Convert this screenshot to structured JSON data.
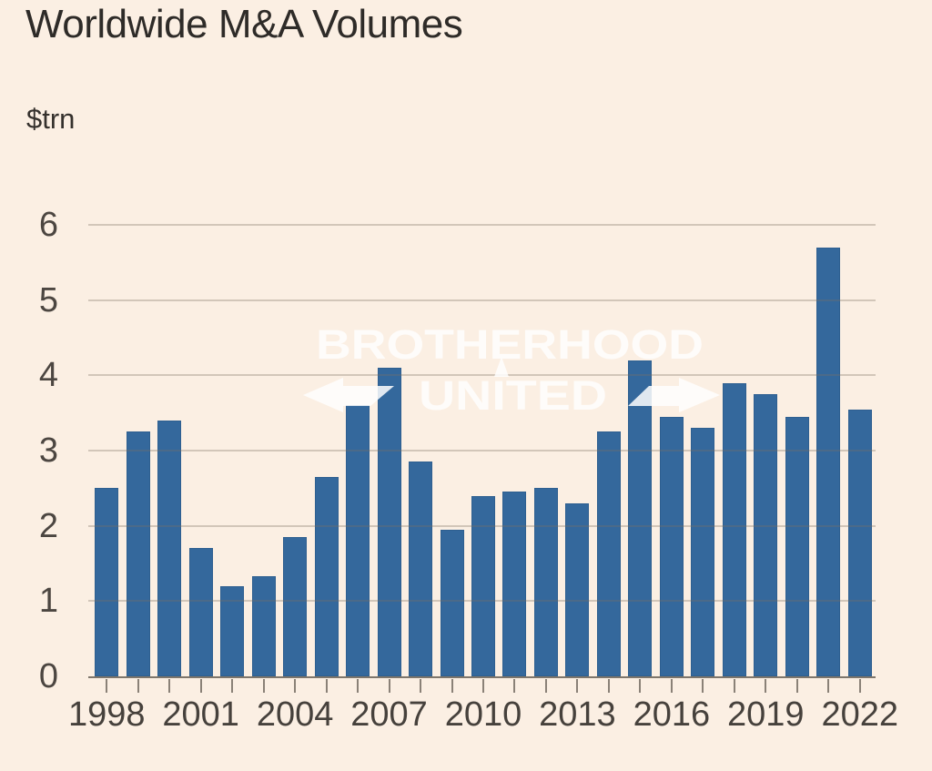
{
  "page": {
    "title": "Worldwide M&A Volumes",
    "unit_label": "$trn"
  },
  "watermark": {
    "line1": "BROTHERHOOD",
    "line2": "UNITED",
    "color": "#FFFFFF",
    "arrows": [
      "left-arrow",
      "up-arrow",
      "right-arrow"
    ]
  },
  "chart_data": {
    "type": "bar",
    "title": "Worldwide M&A Volumes",
    "ylabel": "$trn",
    "xlabel": "",
    "x": [
      1998,
      1999,
      2000,
      2001,
      2002,
      2003,
      2004,
      2005,
      2006,
      2007,
      2008,
      2009,
      2010,
      2011,
      2012,
      2013,
      2014,
      2015,
      2016,
      2017,
      2018,
      2019,
      2020,
      2021,
      2022
    ],
    "values": [
      2.5,
      3.25,
      3.4,
      1.7,
      1.2,
      1.33,
      1.85,
      2.65,
      3.6,
      4.1,
      2.85,
      1.95,
      2.4,
      2.45,
      2.5,
      2.3,
      3.25,
      4.2,
      3.45,
      3.3,
      3.9,
      3.75,
      3.45,
      5.7,
      3.55
    ],
    "x_labeled_ticks": [
      1998,
      2001,
      2004,
      2007,
      2010,
      2013,
      2016,
      2019,
      2022
    ],
    "y_ticks": [
      0,
      1,
      2,
      3,
      4,
      5,
      6
    ],
    "ylim": [
      0,
      6
    ],
    "grid": "horizontal",
    "legend": "none",
    "colors": {
      "bar": "#34689C",
      "bar_edge": "#2E5F90",
      "background": "#FBEFE3",
      "gridline": "#CFC4B8",
      "axis_line": "#7E766C",
      "tick": "#8A8177",
      "axis_text": "#46413C",
      "title_text": "#2E2B28"
    }
  }
}
